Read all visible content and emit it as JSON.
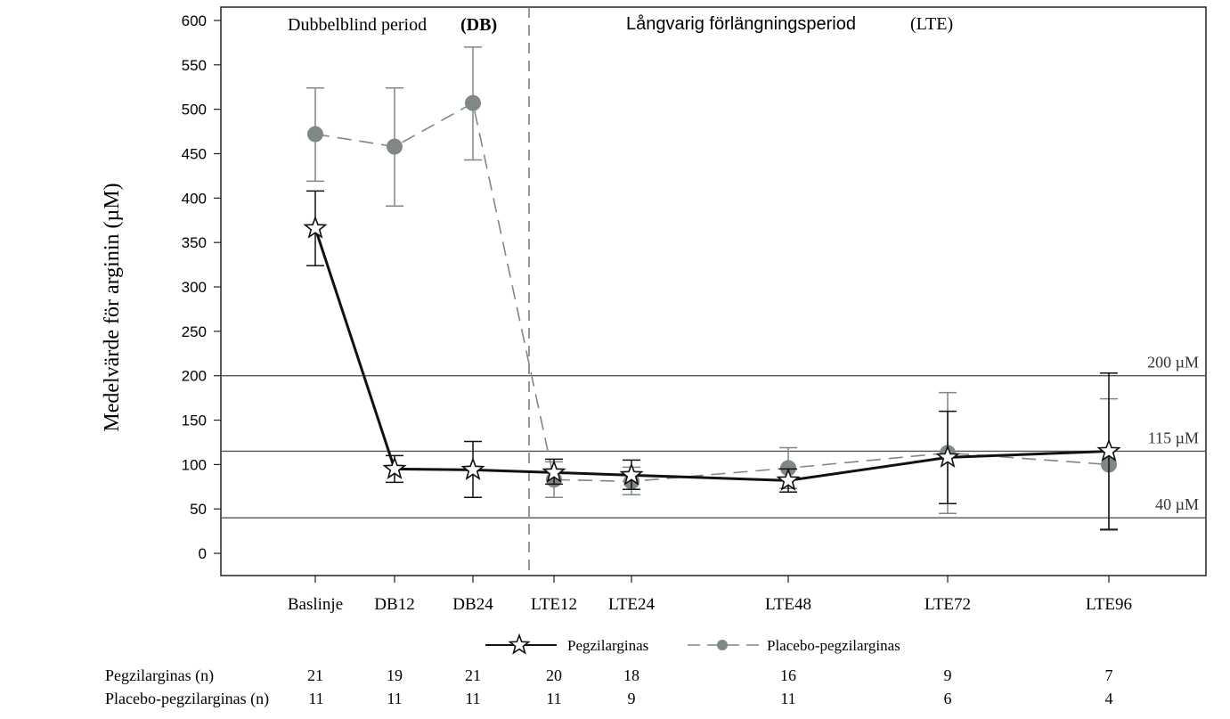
{
  "chart_data": {
    "type": "line",
    "ylabel": "Medelvärde för arginin (µM)",
    "xlabel": "",
    "ylim": [
      -25,
      615
    ],
    "yticks": [
      0,
      50,
      100,
      150,
      200,
      250,
      300,
      350,
      400,
      450,
      500,
      550,
      600
    ],
    "categories": [
      "Baslinje",
      "DB12",
      "DB24",
      "LTE12",
      "LTE24",
      "LTE48",
      "LTE72",
      "LTE96"
    ],
    "periods": [
      {
        "label": "Dubbelblind period",
        "abbr": "(DB)"
      },
      {
        "label": "Långvarig förlängningsperiod",
        "abbr": "(LTE)"
      }
    ],
    "reference_lines": [
      {
        "value": 200,
        "label": "200 µM"
      },
      {
        "value": 115,
        "label": "115 µM"
      },
      {
        "value": 40,
        "label": "40 µM"
      }
    ],
    "series": [
      {
        "name": "Pegzilarginas",
        "marker": "star",
        "line": "solid",
        "color": "#111111",
        "points": [
          {
            "x": "Baslinje",
            "y": 366,
            "lo": 324,
            "hi": 408
          },
          {
            "x": "DB12",
            "y": 95,
            "lo": 80,
            "hi": 110
          },
          {
            "x": "DB24",
            "y": 94,
            "lo": 63,
            "hi": 126
          },
          {
            "x": "LTE12",
            "y": 91,
            "lo": 78,
            "hi": 106
          },
          {
            "x": "LTE24",
            "y": 88,
            "lo": 72,
            "hi": 105
          },
          {
            "x": "LTE48",
            "y": 82,
            "lo": 69,
            "hi": 95
          },
          {
            "x": "LTE72",
            "y": 108,
            "lo": 56,
            "hi": 160
          },
          {
            "x": "LTE96",
            "y": 115,
            "lo": 27,
            "hi": 203
          }
        ]
      },
      {
        "name": "Placebo-pegzilarginas",
        "marker": "circle",
        "line": "dashed",
        "color": "#7f8787",
        "points": [
          {
            "x": "Baslinje",
            "y": 472,
            "lo": 419,
            "hi": 524
          },
          {
            "x": "DB12",
            "y": 458,
            "lo": 391,
            "hi": 524
          },
          {
            "x": "DB24",
            "y": 507,
            "lo": 443,
            "hi": 570
          },
          {
            "x": "LTE12",
            "y": 83,
            "lo": 63,
            "hi": 103
          },
          {
            "x": "LTE24",
            "y": 81,
            "lo": 66,
            "hi": 97
          },
          {
            "x": "LTE48",
            "y": 96,
            "lo": 73,
            "hi": 119
          },
          {
            "x": "LTE72",
            "y": 113,
            "lo": 45,
            "hi": 181
          },
          {
            "x": "LTE96",
            "y": 100,
            "lo": 26,
            "hi": 174
          }
        ]
      }
    ]
  },
  "n_table": {
    "rows": [
      {
        "label": "Pegzilarginas  (n)",
        "values": [
          "21",
          "19",
          "21",
          "20",
          "18",
          "16",
          "9",
          "7"
        ]
      },
      {
        "label": "Placebo-pegzilarginas  (n)",
        "values": [
          "11",
          "11",
          "11",
          "11",
          "9",
          "11",
          "6",
          "4"
        ]
      }
    ]
  }
}
